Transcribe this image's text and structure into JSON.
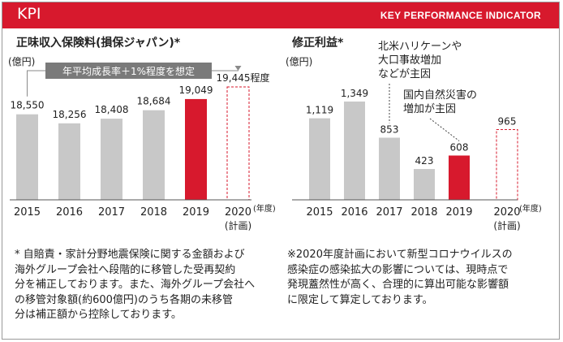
{
  "header": {
    "title": "KPI",
    "subtitle": "KEY PERFORMANCE INDICATOR"
  },
  "colors": {
    "accent": "#d7192d",
    "bar": "#c8c8c8",
    "header_bg": "#d7192d"
  },
  "chart_data": [
    {
      "type": "bar",
      "title": "正味収入保険料(損保ジャパン)*",
      "unit_label": "(億円)",
      "x_unit": "(年度)",
      "categories": [
        "2015",
        "2016",
        "2017",
        "2018",
        "2019",
        "2020"
      ],
      "sublabels": [
        "",
        "",
        "",
        "",
        "",
        "(計画)"
      ],
      "values": [
        18550,
        18256,
        18408,
        18684,
        19049,
        19445
      ],
      "value_labels": [
        "18,550",
        "18,256",
        "18,408",
        "18,684",
        "19,049",
        "19,445程度"
      ],
      "styles": [
        "gray",
        "gray",
        "gray",
        "gray",
        "red",
        "red-dashed-outline"
      ],
      "annotation": "年平均成長率＋1%程度を想定",
      "grid": false
    },
    {
      "type": "bar",
      "title": "修正利益*",
      "unit_label": "(億円)",
      "x_unit": "(年度)",
      "categories": [
        "2015",
        "2016",
        "2017",
        "2018",
        "2019",
        "2020"
      ],
      "sublabels": [
        "",
        "",
        "",
        "",
        "",
        "(計画)"
      ],
      "values": [
        1119,
        1349,
        853,
        423,
        608,
        965
      ],
      "value_labels": [
        "1,119",
        "1,349",
        "853",
        "423",
        "608",
        "965"
      ],
      "styles": [
        "gray",
        "gray",
        "gray",
        "gray",
        "red",
        "red-dashed-outline"
      ],
      "annotations": [
        {
          "text": "北米ハリケーンや\n大口事故増加\nなどが主因",
          "target": "2017"
        },
        {
          "text": "国内自然災害の\n増加が主因",
          "target": "2019"
        }
      ],
      "grid": false
    }
  ],
  "notes": {
    "left": "*  自賠責・家計分野地震保険に関する金額および\n    海外グループ会社へ段階的に移管した受再契約\n    分を補正しております。また、海外グループ会社へ\n    の移管対象額(約600億円)のうち各期の未移管\n    分は補正額から控除しております。",
    "right": "※2020年度計画において新型コロナウイルスの\n    感染症の感染拡大の影響については、現時点で\n    発現蓋然性が高く、合理的に算出可能な影響額\n    に限定して算定しております。"
  }
}
